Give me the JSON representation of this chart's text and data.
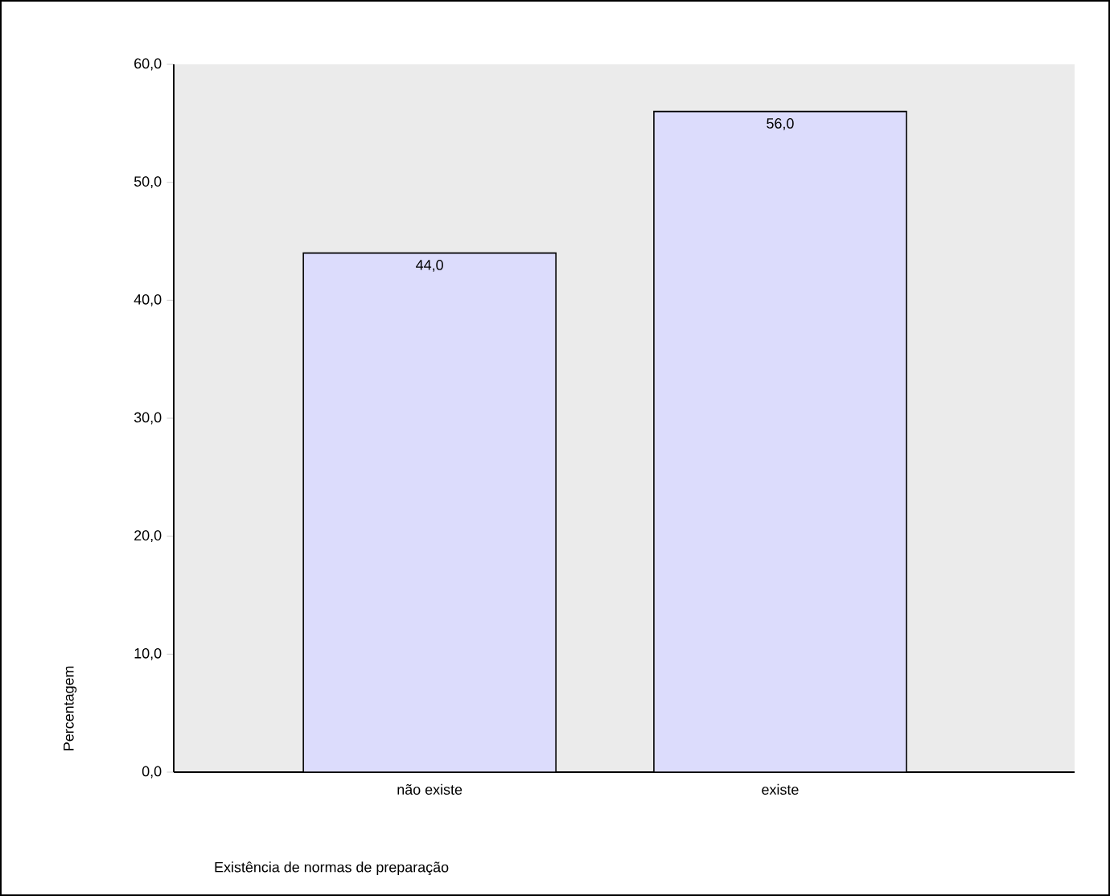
{
  "chart_data": {
    "type": "bar",
    "categories": [
      "não existe",
      "existe"
    ],
    "values": [
      44.0,
      56.0
    ],
    "value_labels": [
      "44,0",
      "56,0"
    ],
    "color": "#dcdcfc",
    "xlabel": "Existência de normas de preparação",
    "ylabel": "Percentagem",
    "ylim": [
      0,
      60
    ],
    "yticks": [
      {
        "value": 0,
        "label": "0,0"
      },
      {
        "value": 10,
        "label": "10,0"
      },
      {
        "value": 20,
        "label": "20,0"
      },
      {
        "value": 30,
        "label": "30,0"
      },
      {
        "value": 40,
        "label": "40,0"
      },
      {
        "value": 50,
        "label": "50,0"
      },
      {
        "value": 60,
        "label": "60,0"
      }
    ],
    "grid": false
  }
}
